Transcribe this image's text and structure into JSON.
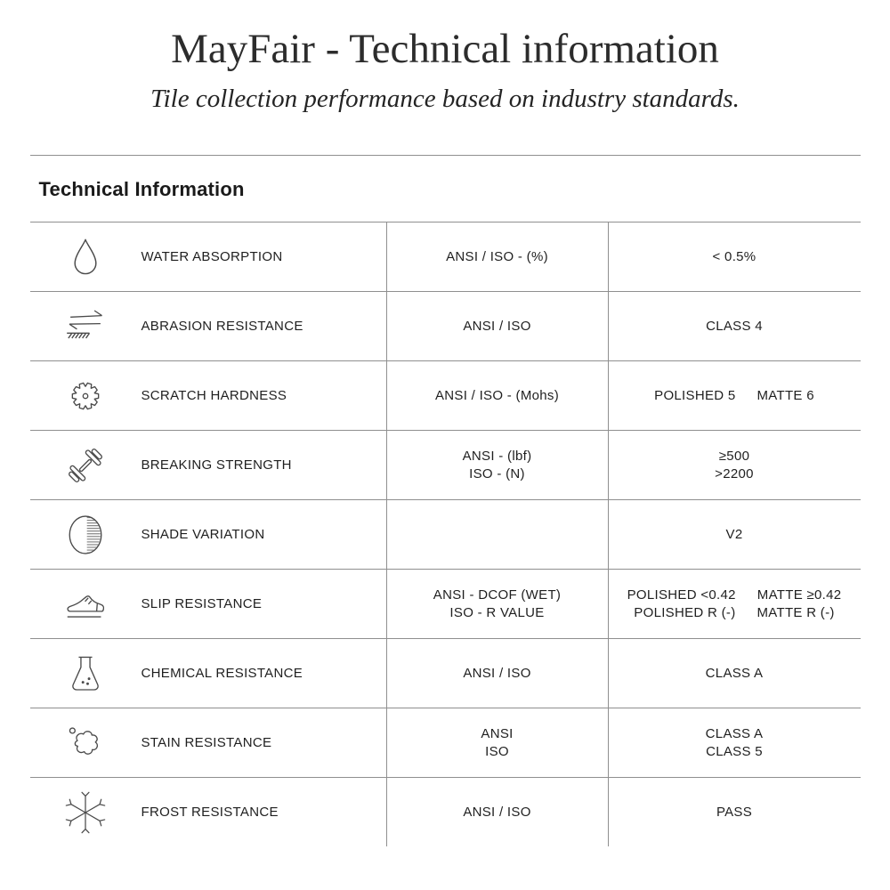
{
  "header": {
    "title": "MayFair - Technical information",
    "subtitle": "Tile collection performance based on industry standards."
  },
  "section": {
    "heading": "Technical Information"
  },
  "colors": {
    "text": "#222222",
    "line": "#8f8f8f",
    "icon_stroke": "#4a4a4a",
    "background": "#ffffff"
  },
  "table": {
    "rows": [
      {
        "icon": "water-drop-icon",
        "property": "WATER ABSORPTION",
        "standard_lines": [
          [
            "ANSI / ISO - (%)"
          ]
        ],
        "value_lines": [
          [
            "< 0.5%"
          ]
        ]
      },
      {
        "icon": "abrasion-arrows-icon",
        "property": "ABRASION RESISTANCE",
        "standard_lines": [
          [
            "ANSI / ISO"
          ]
        ],
        "value_lines": [
          [
            "CLASS 4"
          ]
        ]
      },
      {
        "icon": "gear-icon",
        "property": "SCRATCH HARDNESS",
        "standard_lines": [
          [
            "ANSI / ISO - (Mohs)"
          ]
        ],
        "value_lines": [
          [
            "POLISHED 5",
            "MATTE 6"
          ]
        ]
      },
      {
        "icon": "dumbbell-icon",
        "property": "BREAKING STRENGTH",
        "standard_lines": [
          [
            "ANSI - (lbf)"
          ],
          [
            "ISO - (N)"
          ]
        ],
        "value_lines": [
          [
            "≥500"
          ],
          [
            ">2200"
          ]
        ]
      },
      {
        "icon": "shade-variation-icon",
        "property": "SHADE VARIATION",
        "standard_lines": [],
        "value_lines": [
          [
            "V2"
          ]
        ]
      },
      {
        "icon": "slip-shoe-icon",
        "property": "SLIP RESISTANCE",
        "standard_lines": [
          [
            "ANSI - DCOF (WET)"
          ],
          [
            "ISO - R VALUE"
          ]
        ],
        "value_lines": [
          [
            "POLISHED <0.42",
            "MATTE ≥0.42"
          ],
          [
            "POLISHED R (-)",
            "MATTE R (-)"
          ]
        ]
      },
      {
        "icon": "chemical-flask-icon",
        "property": "CHEMICAL RESISTANCE",
        "standard_lines": [
          [
            "ANSI / ISO"
          ]
        ],
        "value_lines": [
          [
            "CLASS A"
          ]
        ]
      },
      {
        "icon": "stain-blob-icon",
        "property": "STAIN RESISTANCE",
        "standard_lines": [
          [
            "ANSI"
          ],
          [
            "ISO"
          ]
        ],
        "value_lines": [
          [
            "CLASS A"
          ],
          [
            "CLASS 5"
          ]
        ]
      },
      {
        "icon": "snowflake-icon",
        "property": "FROST RESISTANCE",
        "standard_lines": [
          [
            "ANSI / ISO"
          ]
        ],
        "value_lines": [
          [
            "PASS"
          ]
        ]
      }
    ]
  }
}
